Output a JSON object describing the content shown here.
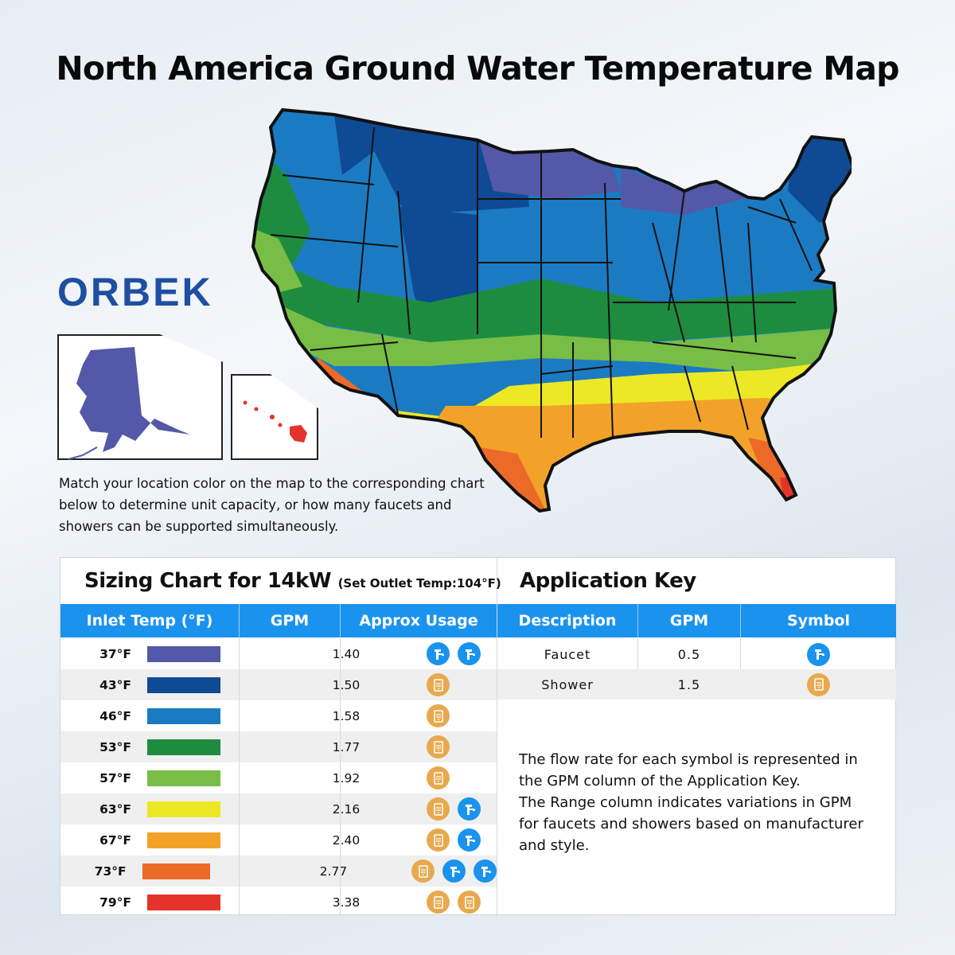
{
  "title": "North America Ground Water Temperature Map",
  "brand": "ORBEK",
  "note": "Match your location color on the map to the corresponding chart below to determine unit capacity, or how many faucets and showers can be supported simultaneously.",
  "colors": {
    "t37": "#5458a8",
    "t43": "#0f4a94",
    "t46": "#1b7bc2",
    "t53": "#1e8c3f",
    "t57": "#78bd45",
    "t63": "#ece826",
    "t67": "#f3a229",
    "t73": "#ec6a27",
    "t79": "#e4332a",
    "header_blue": "#1a93ee",
    "faucet_icon": "#1a93ee",
    "shower_icon": "#e8a94e",
    "brand_blue": "#1f4fa3"
  },
  "sizing": {
    "title": "Sizing Chart for 14kW",
    "subtitle": "(Set Outlet Temp:104°F)",
    "columns": [
      "Inlet Temp (°F)",
      "GPM",
      "Approx Usage"
    ],
    "rows": [
      {
        "temp": "37°F",
        "color": "#5458a8",
        "gpm": "1.40",
        "usage": [
          "faucet",
          "faucet"
        ]
      },
      {
        "temp": "43°F",
        "color": "#0f4a94",
        "gpm": "1.50",
        "usage": [
          "shower"
        ]
      },
      {
        "temp": "46°F",
        "color": "#1b7bc2",
        "gpm": "1.58",
        "usage": [
          "shower"
        ]
      },
      {
        "temp": "53°F",
        "color": "#1e8c3f",
        "gpm": "1.77",
        "usage": [
          "shower"
        ]
      },
      {
        "temp": "57°F",
        "color": "#78bd45",
        "gpm": "1.92",
        "usage": [
          "shower"
        ]
      },
      {
        "temp": "63°F",
        "color": "#ece826",
        "gpm": "2.16",
        "usage": [
          "shower",
          "faucet"
        ]
      },
      {
        "temp": "67°F",
        "color": "#f3a229",
        "gpm": "2.40",
        "usage": [
          "shower",
          "faucet"
        ]
      },
      {
        "temp": "73°F",
        "color": "#ec6a27",
        "gpm": "2.77",
        "usage": [
          "shower",
          "faucet",
          "faucet"
        ]
      },
      {
        "temp": "79°F",
        "color": "#e4332a",
        "gpm": "3.38",
        "usage": [
          "shower",
          "shower"
        ]
      }
    ]
  },
  "app_key": {
    "title": "Application Key",
    "columns": [
      "Description",
      "GPM",
      "Symbol"
    ],
    "rows": [
      {
        "desc": "Faucet",
        "gpm": "0.5",
        "symbol": "faucet"
      },
      {
        "desc": "Shower",
        "gpm": "1.5",
        "symbol": "shower"
      }
    ],
    "text_lines": [
      "The flow rate for each symbol is represented in",
      "the GPM column of the Application Key.",
      "The Range column indicates variations in GPM",
      "for faucets and showers based on manufacturer",
      "and style."
    ]
  },
  "map_zones": [
    {
      "label": "37°F",
      "color": "#5458a8"
    },
    {
      "label": "43°F",
      "color": "#0f4a94"
    },
    {
      "label": "46°F",
      "color": "#1b7bc2"
    },
    {
      "label": "53°F",
      "color": "#1e8c3f"
    },
    {
      "label": "57°F",
      "color": "#78bd45"
    },
    {
      "label": "63°F",
      "color": "#ece826"
    },
    {
      "label": "67°F",
      "color": "#f3a229"
    },
    {
      "label": "73°F",
      "color": "#ec6a27"
    },
    {
      "label": "79°F",
      "color": "#e4332a"
    }
  ]
}
